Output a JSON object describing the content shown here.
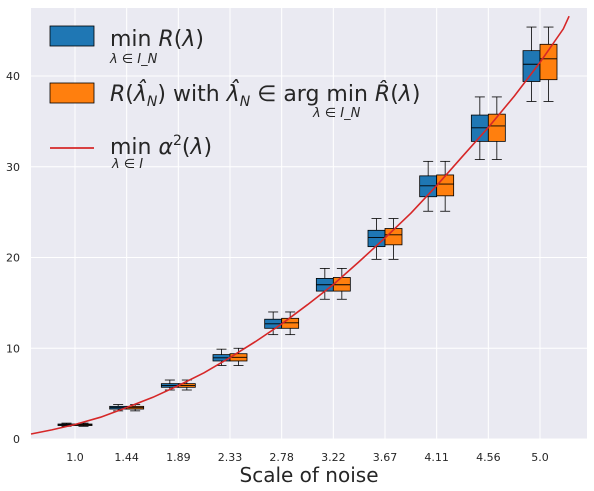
{
  "chart_data": {
    "type": "box",
    "xlabel": "Scale of noise",
    "ylabel": "",
    "title": "",
    "categories": [
      "1.0",
      "1.44",
      "1.89",
      "2.33",
      "2.78",
      "3.22",
      "3.67",
      "4.11",
      "4.56",
      "5.0"
    ],
    "ylim": [
      0,
      47.5
    ],
    "yticks": [
      0,
      10,
      20,
      30,
      40
    ],
    "grid": true,
    "legend_position": "top-left",
    "colors": {
      "plot_bg": "#eaeaf2",
      "grid": "#ffffff",
      "oracle": "#1f77b4",
      "empirical": "#ff7f0e",
      "curve": "#d62728"
    },
    "legend": [
      {
        "main": "min R(λ)",
        "sub": "λ ∈ I_N"
      },
      {
        "main": "R(λ̂_N) with λ̂_N ∈ arg min R̂(λ)",
        "sub": "λ ∈ I_N"
      },
      {
        "main": "min α²(λ)",
        "sub": "λ ∈ I"
      }
    ],
    "series": [
      {
        "name": "min R(λ), λ ∈ I_N",
        "boxes": [
          {
            "whislo": 1.4,
            "q1": 1.5,
            "med": 1.55,
            "q3": 1.65,
            "whishi": 1.75
          },
          {
            "whislo": 3.1,
            "q1": 3.3,
            "med": 3.45,
            "q3": 3.6,
            "whishi": 3.8
          },
          {
            "whislo": 5.4,
            "q1": 5.7,
            "med": 5.9,
            "q3": 6.1,
            "whishi": 6.5
          },
          {
            "whislo": 8.1,
            "q1": 8.6,
            "med": 8.95,
            "q3": 9.3,
            "whishi": 9.9
          },
          {
            "whislo": 11.5,
            "q1": 12.2,
            "med": 12.7,
            "q3": 13.2,
            "whishi": 14.0
          },
          {
            "whislo": 15.4,
            "q1": 16.3,
            "med": 17.0,
            "q3": 17.7,
            "whishi": 18.8
          },
          {
            "whislo": 19.8,
            "q1": 21.2,
            "med": 22.2,
            "q3": 23.0,
            "whishi": 24.3
          },
          {
            "whislo": 25.1,
            "q1": 26.7,
            "med": 27.9,
            "q3": 29.0,
            "whishi": 30.6
          },
          {
            "whislo": 30.8,
            "q1": 32.8,
            "med": 34.3,
            "q3": 35.7,
            "whishi": 37.7
          },
          {
            "whislo": 37.2,
            "q1": 39.4,
            "med": 41.3,
            "q3": 42.8,
            "whishi": 45.4
          }
        ]
      },
      {
        "name": "R(λ̂_N) with λ̂_N ∈ arg min R̂(λ), λ ∈ I_N",
        "boxes": [
          {
            "whislo": 1.4,
            "q1": 1.5,
            "med": 1.55,
            "q3": 1.65,
            "whishi": 1.75
          },
          {
            "whislo": 3.1,
            "q1": 3.3,
            "med": 3.45,
            "q3": 3.6,
            "whishi": 3.8
          },
          {
            "whislo": 5.4,
            "q1": 5.7,
            "med": 5.9,
            "q3": 6.1,
            "whishi": 6.5
          },
          {
            "whislo": 8.1,
            "q1": 8.6,
            "med": 9.0,
            "q3": 9.4,
            "whishi": 10.0
          },
          {
            "whislo": 11.5,
            "q1": 12.2,
            "med": 12.8,
            "q3": 13.3,
            "whishi": 14.0
          },
          {
            "whislo": 15.4,
            "q1": 16.3,
            "med": 17.0,
            "q3": 17.8,
            "whishi": 18.8
          },
          {
            "whislo": 19.8,
            "q1": 21.4,
            "med": 22.5,
            "q3": 23.2,
            "whishi": 24.3
          },
          {
            "whislo": 25.1,
            "q1": 26.8,
            "med": 28.1,
            "q3": 29.1,
            "whishi": 30.6
          },
          {
            "whislo": 30.8,
            "q1": 32.8,
            "med": 34.5,
            "q3": 35.8,
            "whishi": 37.7
          },
          {
            "whislo": 37.2,
            "q1": 39.6,
            "med": 41.9,
            "q3": 43.5,
            "whishi": 45.4
          }
        ]
      }
    ],
    "curve": {
      "name": "min α²(λ), λ ∈ I",
      "x": [
        0.6,
        0.8,
        1.0,
        1.22,
        1.44,
        1.67,
        1.89,
        2.11,
        2.33,
        2.56,
        2.78,
        3.0,
        3.22,
        3.44,
        3.67,
        3.89,
        4.11,
        4.33,
        4.56,
        4.78,
        5.0,
        5.2,
        5.25
      ],
      "y": [
        0.55,
        1.0,
        1.6,
        2.4,
        3.45,
        4.6,
        5.9,
        7.3,
        8.95,
        10.8,
        12.7,
        14.8,
        17.0,
        19.5,
        22.2,
        24.9,
        27.9,
        31.1,
        34.4,
        37.8,
        41.5,
        45.2,
        46.6
      ]
    }
  }
}
